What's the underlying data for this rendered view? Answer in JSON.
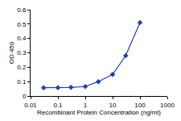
{
  "chart_data": {
    "type": "line",
    "x": [
      0.03,
      0.1,
      0.3,
      1,
      3,
      10,
      30,
      100
    ],
    "values": [
      0.058,
      0.058,
      0.06,
      0.066,
      0.1,
      0.15,
      0.28,
      0.51
    ],
    "color": "#1f3bbf",
    "marker": "diamond",
    "line_style": "solid",
    "log": "x",
    "xlabel": "Recombinant Protein Concentration (ng/ml)",
    "ylabel": "OD 450",
    "xlim": [
      0.01,
      1000
    ],
    "xticks": [
      0.01,
      0.1,
      1,
      10,
      100,
      1000
    ],
    "ylim": [
      0,
      0.6
    ],
    "yticks": [
      0,
      0.1,
      0.2,
      0.3,
      0.4,
      0.5,
      0.6
    ],
    "grid": false
  }
}
